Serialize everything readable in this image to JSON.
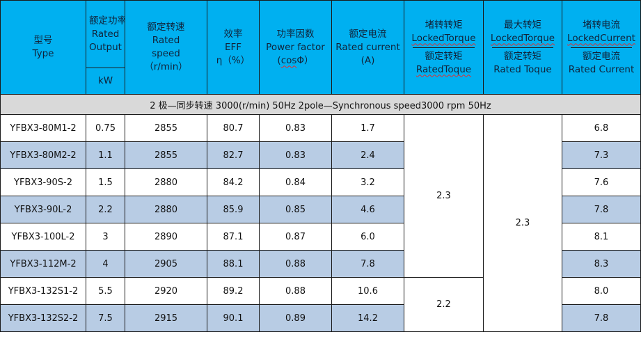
{
  "header": {
    "model": {
      "zh": "型号",
      "en": "Type"
    },
    "power": {
      "zh": "额定功率",
      "en1": "Rated",
      "en2": "Output",
      "unit": "kW"
    },
    "speed": {
      "zh": "额定转速",
      "en1": "Rated",
      "en2": "speed",
      "unit": "（r/min）"
    },
    "eff": {
      "zh": "效率",
      "en1": "EFF",
      "en2": "η（%）"
    },
    "pf": {
      "zh": "功率因数",
      "en1": "Power factor",
      "en2_a": "(",
      "en2_b": "cos",
      "en2_c": "Φ）"
    },
    "current": {
      "zh": "额定电流",
      "en1": "Rated current",
      "en2": "(A)"
    },
    "locked_torque": {
      "zh_top": "堵转转矩",
      "en_top": "LockedTorque",
      "zh_bottom": "额定转矩",
      "en_bottom": "RatedToque"
    },
    "max_torque": {
      "zh_top": "最大转矩",
      "en_top": "LockedTorque",
      "zh_bottom": "额定转矩",
      "en_bottom": "Rated Toque"
    },
    "locked_current": {
      "zh_top": "堵转电流",
      "en_top": "LockedCurrent",
      "zh_bottom": "额定电流",
      "en_bottom": "Rated Current"
    }
  },
  "section": {
    "label": "2 极—同步转速 3000(r/min) 50Hz    2pole—Synchronous  speed3000  rpm    50Hz"
  },
  "rows": [
    {
      "model": "YFBX3-80M1-2",
      "kw": "0.75",
      "speed": "2855",
      "eff": "80.7",
      "pf": "0.83",
      "current": "1.7",
      "locked_current": "6.8"
    },
    {
      "model": "YFBX3-80M2-2",
      "kw": "1.1",
      "speed": "2855",
      "eff": "82.7",
      "pf": "0.83",
      "current": "2.4",
      "locked_current": "7.3"
    },
    {
      "model": "YFBX3-90S-2",
      "kw": "1.5",
      "speed": "2880",
      "eff": "84.2",
      "pf": "0.84",
      "current": "3.2",
      "locked_current": "7.6"
    },
    {
      "model": "YFBX3-90L-2",
      "kw": "2.2",
      "speed": "2880",
      "eff": "85.9",
      "pf": "0.85",
      "current": "4.6",
      "locked_current": "7.8"
    },
    {
      "model": "YFBX3-100L-2",
      "kw": "3",
      "speed": "2890",
      "eff": "87.1",
      "pf": "0.87",
      "current": "6.0",
      "locked_current": "8.1"
    },
    {
      "model": "YFBX3-112M-2",
      "kw": "4",
      "speed": "2905",
      "eff": "88.1",
      "pf": "0.88",
      "current": "7.8",
      "locked_current": "8.3"
    },
    {
      "model": "YFBX3-132S1-2",
      "kw": "5.5",
      "speed": "2920",
      "eff": "89.2",
      "pf": "0.88",
      "current": "10.6",
      "locked_current": "8.0"
    },
    {
      "model": "YFBX3-132S2-2",
      "kw": "7.5",
      "speed": "2915",
      "eff": "90.1",
      "pf": "0.89",
      "current": "14.2",
      "locked_current": "7.8"
    }
  ],
  "merged": {
    "locked_torque_group1": "2.3",
    "locked_torque_group2": "2.2",
    "max_torque_all": "2.3"
  },
  "colors": {
    "header_bg": "#00b0f0",
    "section_bg": "#d9d9d9",
    "alt_row_bg": "#b8cce4",
    "wavy_underline": "#e03030"
  }
}
